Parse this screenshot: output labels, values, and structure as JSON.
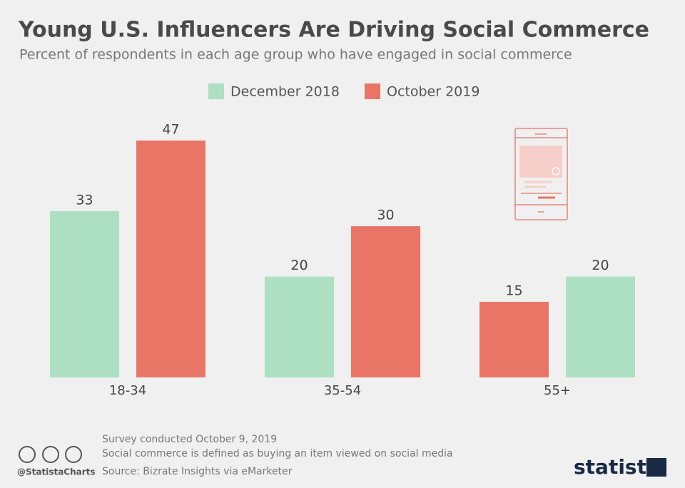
{
  "chart_data": {
    "type": "bar",
    "title": "Young U.S. Influencers Are Driving Social Commerce",
    "subtitle": "Percent of respondents in each age group who have engaged in social commerce",
    "categories": [
      "18-34",
      "35-54",
      "55+"
    ],
    "series": [
      {
        "name": "December 2018",
        "color": "#addfc2",
        "values": [
          33,
          20,
          20
        ]
      },
      {
        "name": "October 2019",
        "color": "#e87565",
        "values": [
          47,
          30,
          15
        ]
      }
    ],
    "bar_order_within_group": "ascending"
  },
  "footer": {
    "notes": [
      "Survey conducted October 9, 2019",
      "Social commerce is defined as buying an item viewed on social media",
      "Source: Bizrate Insights via eMarketer"
    ],
    "handle": "@StatistaCharts",
    "brand": "statista"
  }
}
